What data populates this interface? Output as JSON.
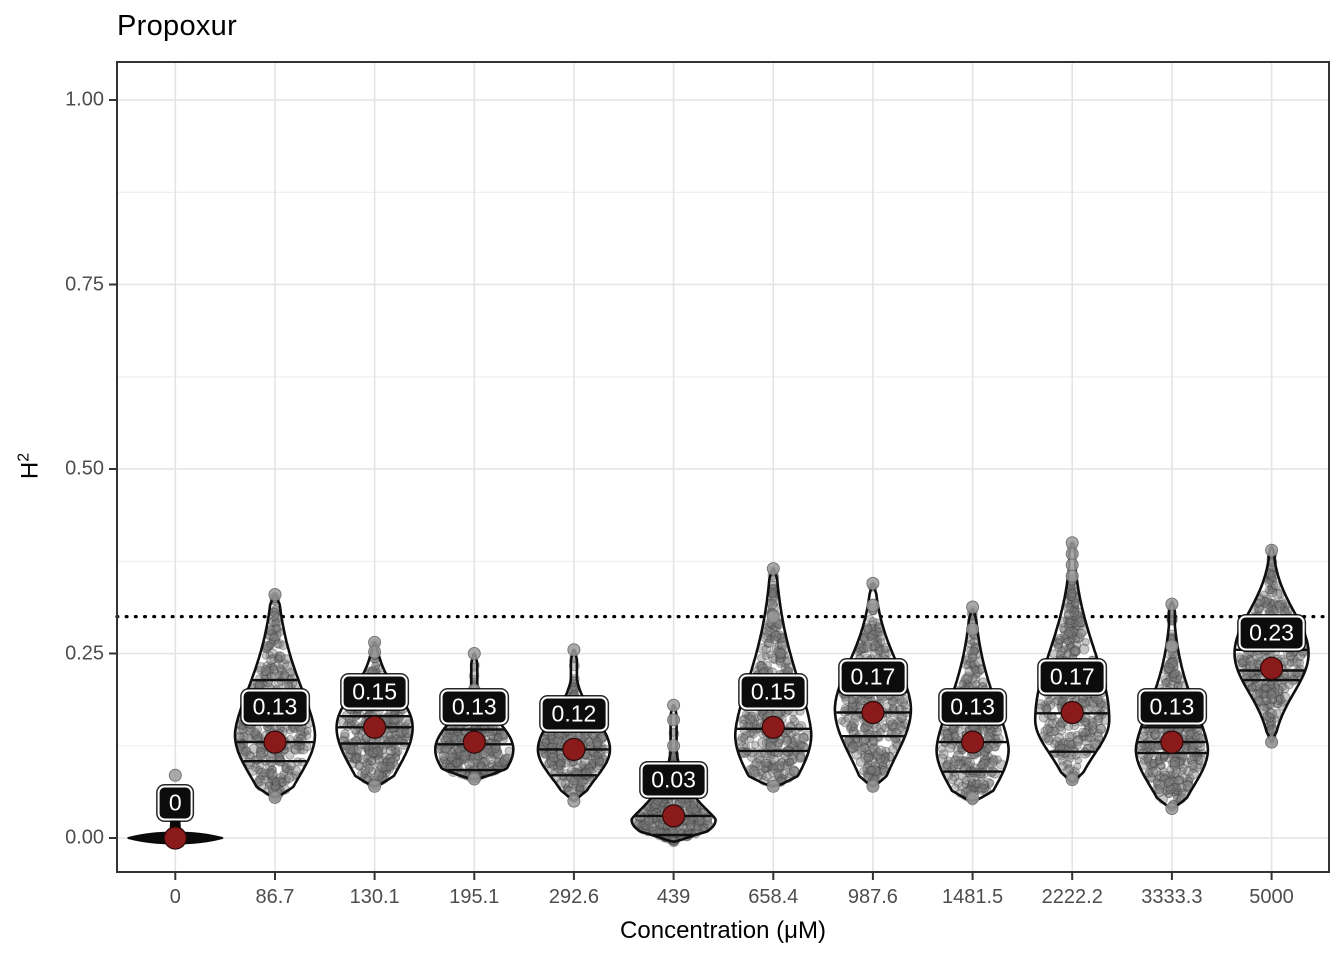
{
  "title": "Propoxur",
  "axes": {
    "x_title": "Concentration (μM)",
    "y_title": "H²",
    "y_title_base": "H",
    "y_title_sup": "2"
  },
  "chart_data": {
    "type": "violin",
    "title": "Propoxur",
    "xlabel": "Concentration (μM)",
    "ylabel": "H²",
    "ylabel_base": "H",
    "ylabel_sup": "2",
    "ylim": [
      -0.046,
      1.051
    ],
    "grid": true,
    "yticks": {
      "values": [
        0,
        0.25,
        0.5,
        0.75,
        1.0
      ],
      "labels": [
        "0.00",
        "0.25",
        "0.50",
        "0.75",
        "1.00"
      ]
    },
    "minor_yticks": [
      0.125,
      0.375,
      0.625,
      0.875
    ],
    "reference_line": {
      "value": 0.3,
      "style": "dotted",
      "color": "#000000"
    },
    "colors": {
      "mean_point": "#8B1A1A",
      "violin_outline": "#0f0f0f",
      "jitter_point": "#7b7b7b",
      "label_bg": "#0c0c0c",
      "label_text": "#ffffff",
      "grid_major": "#E4E4E4",
      "grid_minor": "#EDEDED",
      "axis": "#333333",
      "tick_text": "#4D4D4D"
    },
    "categories": [
      "0",
      "86.7",
      "130.1",
      "195.1",
      "292.6",
      "439",
      "658.4",
      "987.6",
      "1481.5",
      "2222.2",
      "3333.3",
      "5000"
    ],
    "means": [
      0,
      0.13,
      0.15,
      0.13,
      0.12,
      0.03,
      0.15,
      0.17,
      0.13,
      0.17,
      0.13,
      0.23
    ],
    "violins": [
      {
        "category": "0",
        "mean": 0,
        "mean_label": "0",
        "min": 0,
        "max": 0,
        "quartiles": [
          0,
          0,
          0
        ],
        "tip_points": [
          0.085
        ],
        "flat": true,
        "shape": {
          "hw": 47,
          "stem_top": 0.068,
          "n": 0
        }
      },
      {
        "category": "86.7",
        "mean": 0.13,
        "mean_label": "0.13",
        "min": 0.055,
        "max": 0.33,
        "quartiles": [
          0.104,
          0.13,
          0.214
        ],
        "tip_points": [
          0.33,
          0.055
        ],
        "shape": {
          "mode": 0.14,
          "sLow": 0.08,
          "pLow": 2,
          "sHigh": 0.11,
          "pHigh": 1.6,
          "hw": 40,
          "n": 370
        }
      },
      {
        "category": "130.1",
        "mean": 0.15,
        "mean_label": "0.15",
        "min": 0.07,
        "max": 0.265,
        "quartiles": [
          0.128,
          0.15,
          0.165
        ],
        "tip_points": [
          0.265,
          0.252,
          0.07
        ],
        "shape": {
          "mode": 0.15,
          "sLow": 0.08,
          "pLow": 2,
          "sHigh": 0.066,
          "pHigh": 2,
          "hw": 38,
          "n": 350
        }
      },
      {
        "category": "195.1",
        "mean": 0.13,
        "mean_label": "0.13",
        "min": 0.08,
        "max": 0.25,
        "quartiles": [
          0.092,
          0.127,
          0.147
        ],
        "tip_points": [
          0.25,
          0.2,
          0.08
        ],
        "shape": {
          "mode": 0.12,
          "sLow": 0.06,
          "pLow": 2,
          "sHigh": 0.055,
          "pHigh": 2,
          "hw": 39,
          "n": 350
        }
      },
      {
        "category": "292.6",
        "mean": 0.12,
        "mean_label": "0.12",
        "min": 0.05,
        "max": 0.255,
        "quartiles": [
          0.085,
          0.12,
          0.15
        ],
        "tip_points": [
          0.255,
          0.05
        ],
        "shape": {
          "mode": 0.12,
          "sLow": 0.055,
          "pLow": 2,
          "sHigh": 0.06,
          "pHigh": 2,
          "hw": 36,
          "n": 350
        }
      },
      {
        "category": "439",
        "mean": 0.03,
        "mean_label": "0.03",
        "min": -0.005,
        "max": 0.18,
        "quartiles": [
          0.004,
          0.03,
          0.054
        ],
        "tip_points": [
          0.18,
          0.16,
          0.125
        ],
        "shape": {
          "mode": 0.025,
          "sLow": 0.032,
          "pLow": 2.2,
          "sHigh": 0.042,
          "pHigh": 1.25,
          "hw": 42,
          "n": 330
        }
      },
      {
        "category": "658.4",
        "mean": 0.15,
        "mean_label": "0.15",
        "min": 0.07,
        "max": 0.365,
        "quartiles": [
          0.118,
          0.148,
          0.196
        ],
        "tip_points": [
          0.365,
          0.3,
          0.07
        ],
        "shape": {
          "mode": 0.14,
          "sLow": 0.085,
          "pLow": 2,
          "sHigh": 0.126,
          "pHigh": 1.6,
          "hw": 38,
          "n": 370
        }
      },
      {
        "category": "987.6",
        "mean": 0.17,
        "mean_label": "0.17",
        "min": 0.07,
        "max": 0.345,
        "quartiles": [
          0.138,
          0.17,
          0.198
        ],
        "tip_points": [
          0.345,
          0.315,
          0.07
        ],
        "shape": {
          "mode": 0.175,
          "sLow": 0.09,
          "pLow": 2,
          "sHigh": 0.095,
          "pHigh": 1.8,
          "hw": 38,
          "n": 370
        }
      },
      {
        "category": "1481.5",
        "mean": 0.13,
        "mean_label": "0.13",
        "min": 0.05,
        "max": 0.31,
        "quartiles": [
          0.09,
          0.13,
          0.155
        ],
        "tip_points": [
          0.313,
          0.283,
          0.054
        ],
        "shape": {
          "mode": 0.12,
          "sLow": 0.075,
          "pLow": 2,
          "sHigh": 0.105,
          "pHigh": 1.6,
          "hw": 36,
          "n": 360
        }
      },
      {
        "category": "2222.2",
        "mean": 0.17,
        "mean_label": "0.17",
        "min": 0.075,
        "max": 0.4,
        "quartiles": [
          0.117,
          0.169,
          0.21
        ],
        "tip_points": [
          0.4,
          0.385,
          0.37,
          0.355,
          0.079
        ],
        "shape": {
          "mode": 0.16,
          "sLow": 0.065,
          "pLow": 2,
          "sHigh": 0.132,
          "pHigh": 2,
          "hw": 37,
          "n": 370
        }
      },
      {
        "category": "3333.3",
        "mean": 0.13,
        "mean_label": "0.13",
        "min": 0.04,
        "max": 0.32,
        "quartiles": [
          0.115,
          0.13,
          0.15
        ],
        "tip_points": [
          0.317,
          0.26,
          0.04
        ],
        "shape": {
          "mode": 0.12,
          "sLow": 0.07,
          "pLow": 2,
          "sHigh": 0.095,
          "pHigh": 1.6,
          "hw": 36,
          "n": 360
        }
      },
      {
        "category": "5000",
        "mean": 0.23,
        "mean_label": "0.23",
        "min": 0.13,
        "max": 0.395,
        "quartiles": [
          0.214,
          0.227,
          0.255
        ],
        "tip_points": [
          0.39,
          0.13
        ],
        "shape": {
          "mode": 0.25,
          "sLow": 0.075,
          "pLow": 2,
          "sHigh": 0.08,
          "pHigh": 2,
          "hw": 37,
          "n": 360
        }
      }
    ]
  }
}
